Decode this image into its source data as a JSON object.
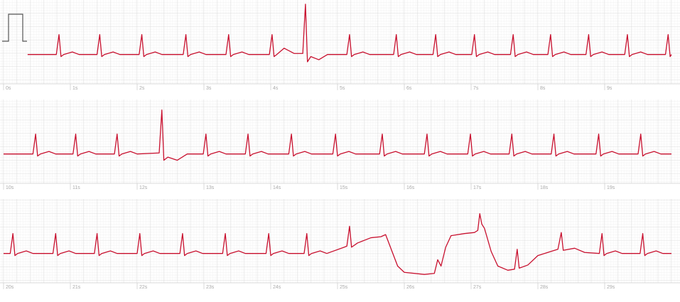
{
  "chart_data": [
    {
      "type": "line",
      "color": "#c8102e",
      "grid": true,
      "xlim": [
        0,
        10
      ],
      "ylim": [
        -1.4,
        2.6
      ],
      "xticks": [
        {
          "value": 0,
          "label": "0s"
        },
        {
          "value": 1,
          "label": "1s"
        },
        {
          "value": 2,
          "label": "2s"
        },
        {
          "value": 3,
          "label": "3s"
        },
        {
          "value": 4,
          "label": "4s"
        },
        {
          "value": 5,
          "label": "5s"
        },
        {
          "value": 6,
          "label": "6s"
        },
        {
          "value": 7,
          "label": "7s"
        },
        {
          "value": 8,
          "label": "8s"
        },
        {
          "value": 9,
          "label": "9s"
        }
      ],
      "x": [
        0.36,
        0.79,
        0.83,
        0.86,
        0.9,
        1.03,
        1.13,
        1.4,
        1.44,
        1.47,
        1.51,
        1.64,
        1.74,
        2.03,
        2.07,
        2.1,
        2.14,
        2.27,
        2.37,
        2.69,
        2.73,
        2.76,
        2.8,
        2.93,
        3.03,
        3.33,
        3.37,
        3.4,
        3.44,
        3.57,
        3.67,
        3.98,
        4.02,
        4.05,
        4.09,
        4.2,
        4.35,
        4.48,
        4.52,
        4.55,
        4.6,
        4.72,
        4.85,
        5.14,
        5.18,
        5.21,
        5.25,
        5.38,
        5.48,
        5.84,
        5.88,
        5.91,
        5.95,
        6.08,
        6.18,
        6.43,
        6.47,
        6.5,
        6.54,
        6.67,
        6.77,
        7.01,
        7.05,
        7.08,
        7.12,
        7.25,
        7.35,
        7.59,
        7.63,
        7.66,
        7.7,
        7.83,
        7.93,
        8.15,
        8.19,
        8.22,
        8.26,
        8.39,
        8.49,
        8.72,
        8.76,
        8.79,
        8.83,
        8.96,
        9.06,
        9.3,
        9.34,
        9.37,
        9.41,
        9.54,
        9.64,
        9.91,
        9.95,
        9.98,
        10
      ],
      "values": [
        0,
        0,
        0.95,
        -0.1,
        0,
        0.12,
        0,
        0,
        0.95,
        -0.1,
        0,
        0.12,
        0,
        0,
        0.95,
        -0.1,
        0,
        0.12,
        0,
        0,
        0.95,
        -0.1,
        0,
        0.12,
        0,
        0,
        0.95,
        -0.1,
        0,
        0.12,
        0,
        0,
        0.95,
        -0.1,
        0,
        0.3,
        0.05,
        0.05,
        2.4,
        -0.35,
        -0.1,
        -0.25,
        0,
        0,
        0.95,
        -0.1,
        0,
        0.12,
        0,
        0,
        0.95,
        -0.1,
        0,
        0.12,
        0,
        0,
        0.95,
        -0.1,
        0,
        0.12,
        0,
        0,
        0.95,
        -0.1,
        0,
        0.12,
        0,
        0,
        0.95,
        -0.1,
        0,
        0.12,
        0,
        0,
        0.95,
        -0.1,
        0,
        0.12,
        0,
        0,
        0.95,
        -0.1,
        0,
        0.12,
        0,
        0,
        0.95,
        -0.1,
        0,
        0.12,
        0,
        0,
        0.95,
        -0.1,
        0
      ]
    },
    {
      "type": "line",
      "color": "#c8102e",
      "grid": true,
      "xlim": [
        10,
        20
      ],
      "ylim": [
        -1.4,
        2.6
      ],
      "xticks": [
        {
          "value": 10,
          "label": "10s"
        },
        {
          "value": 11,
          "label": "11s"
        },
        {
          "value": 12,
          "label": "12s"
        },
        {
          "value": 13,
          "label": "13s"
        },
        {
          "value": 14,
          "label": "14s"
        },
        {
          "value": 15,
          "label": "15s"
        },
        {
          "value": 16,
          "label": "16s"
        },
        {
          "value": 17,
          "label": "17s"
        },
        {
          "value": 18,
          "label": "18s"
        },
        {
          "value": 19,
          "label": "19s"
        }
      ],
      "x": [
        10,
        10.44,
        10.48,
        10.51,
        10.55,
        10.68,
        10.78,
        11.04,
        11.08,
        11.11,
        11.15,
        11.28,
        11.38,
        11.66,
        11.7,
        11.73,
        11.77,
        11.9,
        12.0,
        12.33,
        12.37,
        12.4,
        12.46,
        12.6,
        12.75,
        12.99,
        13.03,
        13.06,
        13.1,
        13.23,
        13.33,
        13.62,
        13.66,
        13.69,
        13.73,
        13.86,
        13.96,
        14.27,
        14.31,
        14.34,
        14.38,
        14.51,
        14.61,
        14.93,
        14.97,
        15.0,
        15.04,
        15.17,
        15.27,
        15.63,
        15.67,
        15.7,
        15.74,
        15.87,
        15.97,
        16.3,
        16.34,
        16.37,
        16.41,
        16.54,
        16.64,
        16.95,
        16.99,
        17.02,
        17.06,
        17.19,
        17.29,
        17.57,
        17.61,
        17.64,
        17.68,
        17.81,
        17.91,
        18.2,
        18.24,
        18.27,
        18.31,
        18.44,
        18.54,
        18.87,
        18.91,
        18.94,
        18.98,
        19.11,
        19.21,
        19.5,
        19.54,
        19.57,
        19.61,
        19.74,
        19.84,
        20
      ],
      "values": [
        0,
        0,
        0.95,
        -0.1,
        0,
        0.12,
        0,
        0,
        0.95,
        -0.1,
        0,
        0.12,
        0,
        0,
        0.95,
        -0.1,
        0,
        0.12,
        0,
        0.05,
        2.1,
        -0.3,
        -0.15,
        -0.3,
        0,
        0,
        0.95,
        -0.1,
        0,
        0.12,
        0,
        0,
        0.95,
        -0.1,
        0,
        0.12,
        0,
        0,
        0.95,
        -0.1,
        0,
        0.12,
        0,
        0,
        0.95,
        -0.1,
        0,
        0.12,
        0,
        0,
        0.95,
        -0.1,
        0,
        0.12,
        0,
        0,
        0.95,
        -0.1,
        0,
        0.12,
        0,
        0,
        0.95,
        -0.1,
        0,
        0.12,
        0,
        0,
        0.95,
        -0.1,
        0,
        0.12,
        0,
        0,
        0.95,
        -0.1,
        0,
        0.12,
        0,
        0,
        0.95,
        -0.1,
        0,
        0.12,
        0,
        0,
        0.95,
        -0.1,
        0,
        0.12,
        0,
        0
      ]
    },
    {
      "type": "line",
      "color": "#c8102e",
      "grid": true,
      "xlim": [
        20,
        30
      ],
      "ylim": [
        -1.4,
        2.6
      ],
      "xticks": [
        {
          "value": 20,
          "label": "20s"
        },
        {
          "value": 21,
          "label": "21s"
        },
        {
          "value": 22,
          "label": "22s"
        },
        {
          "value": 23,
          "label": "23s"
        },
        {
          "value": 24,
          "label": "24s"
        },
        {
          "value": 25,
          "label": "25s"
        },
        {
          "value": 26,
          "label": "26s"
        },
        {
          "value": 27,
          "label": "27s"
        },
        {
          "value": 28,
          "label": "28s"
        },
        {
          "value": 29,
          "label": "29s"
        }
      ],
      "x": [
        20,
        20.1,
        20.14,
        20.17,
        20.21,
        20.34,
        20.44,
        20.74,
        20.78,
        20.81,
        20.85,
        20.98,
        21.08,
        21.36,
        21.4,
        21.43,
        21.47,
        21.6,
        21.7,
        22.0,
        22.04,
        22.07,
        22.11,
        22.24,
        22.34,
        22.64,
        22.68,
        22.71,
        22.75,
        22.88,
        22.98,
        23.28,
        23.32,
        23.35,
        23.39,
        23.52,
        23.62,
        23.93,
        23.97,
        24.0,
        24.04,
        24.17,
        24.27,
        24.5,
        24.54,
        24.57,
        24.61,
        24.74,
        24.84,
        25.1,
        25.14,
        25.18,
        25.21,
        25.3,
        25.5,
        25.65,
        25.72,
        25.78,
        25.9,
        26.0,
        26.3,
        26.45,
        26.5,
        26.55,
        26.62,
        26.7,
        26.9,
        27.05,
        27.1,
        27.13,
        27.16,
        27.2,
        27.3,
        27.4,
        27.55,
        27.65,
        27.69,
        27.72,
        27.85,
        28.0,
        28.3,
        28.35,
        28.38,
        28.55,
        28.7,
        28.92,
        28.96,
        28.99,
        29.03,
        29.16,
        29.26,
        29.53,
        29.57,
        29.6,
        29.64,
        29.77,
        29.87,
        30
      ],
      "values": [
        0,
        0,
        0.95,
        -0.1,
        0,
        0.12,
        0,
        0,
        0.95,
        -0.1,
        0,
        0.12,
        0,
        0,
        0.95,
        -0.1,
        0,
        0.12,
        0,
        0,
        0.95,
        -0.1,
        0,
        0.12,
        0,
        0,
        0.95,
        -0.1,
        0,
        0.12,
        0,
        0,
        0.95,
        -0.1,
        0,
        0.12,
        0,
        0,
        0.95,
        -0.1,
        0,
        0.12,
        0,
        0,
        0.95,
        -0.1,
        0,
        0.12,
        0,
        0.3,
        0.35,
        1.3,
        0.3,
        0.5,
        0.75,
        0.8,
        0.9,
        0.4,
        -0.6,
        -0.9,
        -1.0,
        -0.95,
        -0.3,
        -0.6,
        0.3,
        0.85,
        0.95,
        1.0,
        1.1,
        1.9,
        1.4,
        1.2,
        0.1,
        -0.6,
        -0.8,
        -0.75,
        0.2,
        -0.7,
        -0.55,
        -0.1,
        0.2,
        1.0,
        0.15,
        0.25,
        0.05,
        0,
        0.95,
        -0.1,
        0,
        0.12,
        0,
        0,
        0.95,
        -0.1,
        0,
        0.12,
        0,
        0
      ]
    }
  ]
}
